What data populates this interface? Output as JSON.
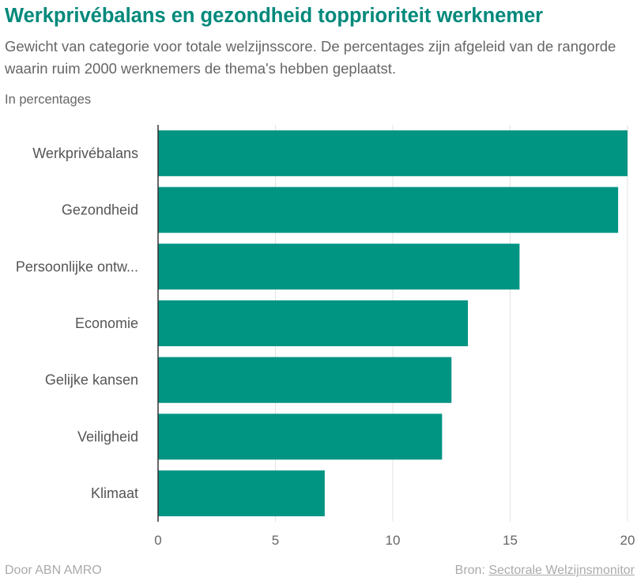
{
  "header": {
    "title": "Werkprivébalans en gezondheid topprioriteit werknemer",
    "subtitle": "Gewicht van categorie voor totale welzijnsscore. De percentages zijn afgeleid van de rangorde waarin ruim 2000 werknemers de thema's hebben geplaatst.",
    "unit_label": "In percentages"
  },
  "footer": {
    "author": "Door ABN AMRO",
    "source_prefix": "Bron: ",
    "source_link": "Sectorale Welzijnsmonitor"
  },
  "colors": {
    "bar": "#009483",
    "title": "#00897b",
    "grid": "#e3e3e3",
    "axis": "#333333"
  },
  "chart_data": {
    "type": "bar",
    "orientation": "horizontal",
    "title": "Werkprivébalans en gezondheid topprioriteit werknemer",
    "xlabel": "",
    "ylabel": "",
    "categories": [
      "Werkprivébalans",
      "Gezondheid",
      "Persoonlijke ontw...",
      "Economie",
      "Gelijke kansen",
      "Veiligheid",
      "Klimaat"
    ],
    "values": [
      20.1,
      19.6,
      15.4,
      13.2,
      12.5,
      12.1,
      7.1
    ],
    "xlim": [
      0,
      20
    ],
    "xticks": [
      0,
      5,
      10,
      15,
      20
    ],
    "grid": true
  }
}
